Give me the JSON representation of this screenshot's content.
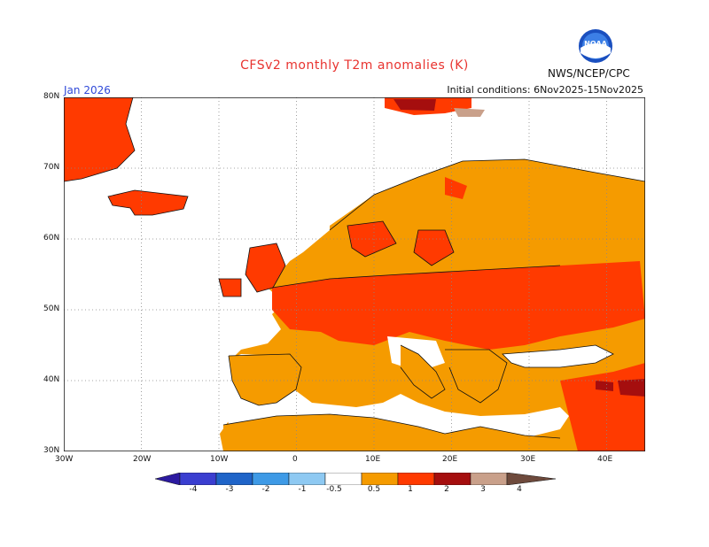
{
  "header": {
    "title": "CFSv2 monthly T2m anomalies (K)",
    "month": "Jan 2026",
    "initial_conditions": "Initial conditions: 6Nov2025-15Nov2025",
    "agency": "NWS/NCEP/CPC",
    "logo": "noaa-logo"
  },
  "axes": {
    "lat_labels": [
      "80N",
      "70N",
      "60N",
      "50N",
      "40N",
      "30N"
    ],
    "lon_labels": [
      "30W",
      "20W",
      "10W",
      "0",
      "10E",
      "20E",
      "30E",
      "40E"
    ]
  },
  "colorbar": {
    "labels": [
      "-4",
      "-3",
      "-2",
      "-1",
      "-0.5",
      "0.5",
      "1",
      "2",
      "3",
      "4"
    ],
    "colors": [
      "#2c1aa0",
      "#3a3ed0",
      "#1f64c8",
      "#3e9ae6",
      "#8ec9f2",
      "#ffffff",
      "#f59b00",
      "#ff3a00",
      "#a50e0e",
      "#c9a08a",
      "#6e4a3c"
    ]
  },
  "map": {
    "colors": {
      "light_orange": "#f59b00",
      "red_orange": "#ff3a00",
      "dark_red": "#a50e0e",
      "tan": "#c9a08a"
    },
    "graticule": "dotted",
    "region": "Europe"
  }
}
